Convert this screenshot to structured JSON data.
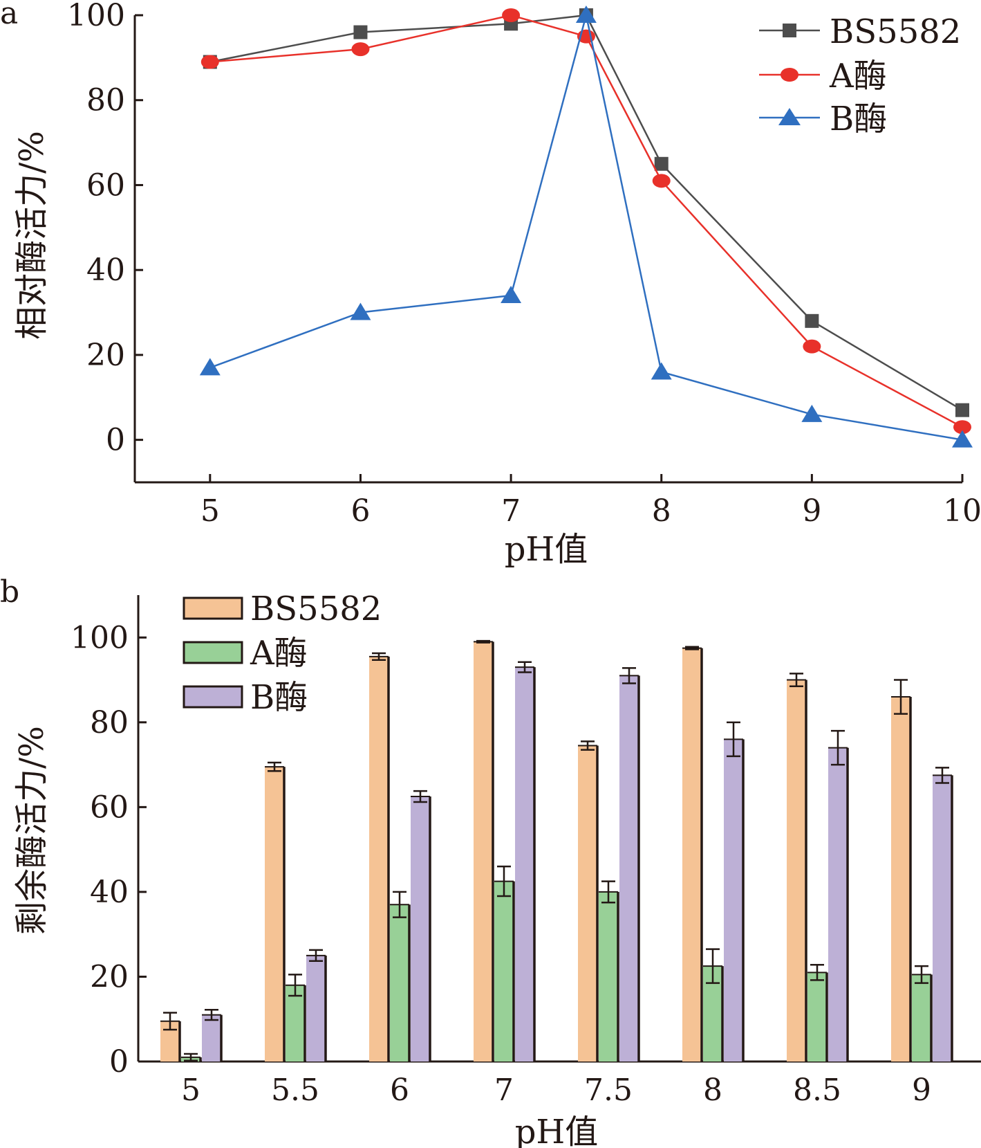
{
  "chart_data": [
    {
      "panel_label": "a",
      "type": "line",
      "xlabel": "pH值",
      "ylabel": "相对酶活力/%",
      "xlim": [
        4.5,
        10
      ],
      "ylim": [
        -10,
        100
      ],
      "xticks": [
        5,
        6,
        7,
        8,
        9,
        10
      ],
      "yticks": [
        0,
        20,
        40,
        60,
        80,
        100
      ],
      "legend": "top-right",
      "series": [
        {
          "name": "BS5582",
          "color": "#4d4d4d",
          "marker": "square",
          "x": [
            5,
            6,
            7,
            7.5,
            8,
            9,
            10
          ],
          "y": [
            89,
            96,
            98,
            100,
            65,
            28,
            7
          ]
        },
        {
          "name": "A酶",
          "color": "#e8312a",
          "marker": "circle",
          "x": [
            5,
            6,
            7,
            7.5,
            8,
            9,
            10
          ],
          "y": [
            89,
            92,
            100,
            95,
            61,
            22,
            3
          ]
        },
        {
          "name": "B酶",
          "color": "#2f6fc0",
          "marker": "triangle",
          "x": [
            5,
            6,
            7,
            7.5,
            8,
            9,
            10
          ],
          "y": [
            17,
            30,
            34,
            100,
            16,
            6,
            0
          ]
        }
      ]
    },
    {
      "panel_label": "b",
      "type": "bar",
      "xlabel": "pH值",
      "ylabel": "剩余酶活力/%",
      "ylim": [
        0,
        110
      ],
      "yticks": [
        0,
        20,
        40,
        60,
        80,
        100
      ],
      "legend": "top-left",
      "categories": [
        "5",
        "5.5",
        "6",
        "7",
        "7.5",
        "8",
        "8.5",
        "9"
      ],
      "series": [
        {
          "name": "BS5582",
          "color": "#f5c395",
          "values": [
            9.5,
            69.5,
            95.5,
            99,
            74.5,
            97.5,
            90,
            86
          ],
          "errors": [
            2,
            1,
            0.8,
            0.2,
            1,
            0.3,
            1.5,
            4
          ]
        },
        {
          "name": "A酶",
          "color": "#98d097",
          "values": [
            1,
            18,
            37,
            42.5,
            40,
            22.5,
            21,
            20.5
          ],
          "errors": [
            0.8,
            2.5,
            3,
            3.5,
            2.5,
            4,
            1.8,
            2
          ]
        },
        {
          "name": "B酶",
          "color": "#bdb0d6",
          "values": [
            11,
            25,
            62.5,
            93,
            91,
            76,
            74,
            67.5
          ],
          "errors": [
            1.2,
            1.3,
            1.3,
            1.2,
            1.8,
            4,
            4,
            1.8
          ]
        }
      ]
    }
  ]
}
